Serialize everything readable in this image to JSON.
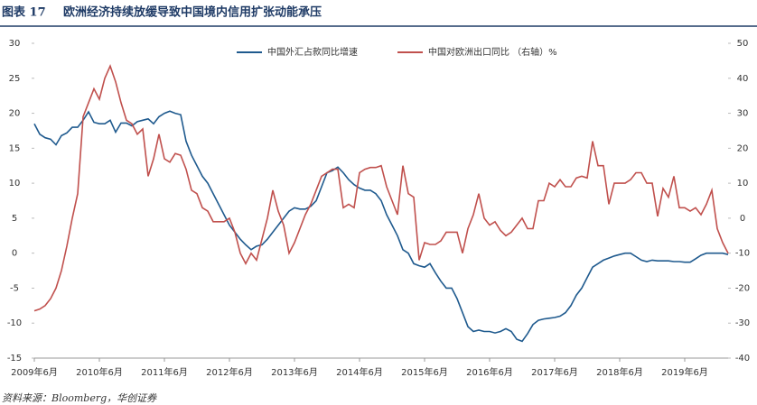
{
  "figure_label": "图表 17",
  "title": "欧洲经济持续放缓导致中国境内信用扩张动能承压",
  "source": "资料来源：Bloomberg，华创证券",
  "chart_data": {
    "type": "line",
    "categories": [
      "2009年6月",
      null,
      null,
      null,
      null,
      null,
      null,
      null,
      null,
      null,
      null,
      null,
      "2010年6月",
      null,
      null,
      null,
      null,
      null,
      null,
      null,
      null,
      null,
      null,
      null,
      "2011年6月",
      null,
      null,
      null,
      null,
      null,
      null,
      null,
      null,
      null,
      null,
      null,
      "2012年6月",
      null,
      null,
      null,
      null,
      null,
      null,
      null,
      null,
      null,
      null,
      null,
      "2013年6月",
      null,
      null,
      null,
      null,
      null,
      null,
      null,
      null,
      null,
      null,
      null,
      "2014年6月",
      null,
      null,
      null,
      null,
      null,
      null,
      null,
      null,
      null,
      null,
      null,
      "2015年6月",
      null,
      null,
      null,
      null,
      null,
      null,
      null,
      null,
      null,
      null,
      null,
      "2016年6月",
      null,
      null,
      null,
      null,
      null,
      null,
      null,
      null,
      null,
      null,
      null,
      "2017年6月",
      null,
      null,
      null,
      null,
      null,
      null,
      null,
      null,
      null,
      null,
      null,
      "2018年6月",
      null,
      null,
      null,
      null,
      null,
      null,
      null,
      null,
      null,
      null,
      null,
      "2019年6月",
      null,
      null,
      null,
      null,
      null,
      null,
      null,
      null
    ],
    "series": [
      {
        "name": "中国外汇占款同比增速",
        "color": "#1f5a8e",
        "values": [
          18.5,
          17,
          16.5,
          16.3,
          15.5,
          16.8,
          17.2,
          18,
          18,
          19,
          20.2,
          18.7,
          18.5,
          18.5,
          19,
          17.3,
          18.6,
          18.6,
          18.2,
          18.8,
          19,
          19.2,
          18.5,
          19.5,
          20,
          20.3,
          20,
          19.8,
          16,
          14,
          12.5,
          11,
          10,
          8.5,
          7,
          5.5,
          4,
          3,
          2,
          1.2,
          0.5,
          1,
          1.2,
          2,
          3,
          4,
          5,
          6,
          6.5,
          6.3,
          6.3,
          6.7,
          7.5,
          9.5,
          11.5,
          11.8,
          12.3,
          11.5,
          10.5,
          9.8,
          9.3,
          9,
          9,
          8.5,
          7.5,
          5.5,
          4,
          2.5,
          0.5,
          0,
          -1.5,
          -1.8,
          -2,
          -1.5,
          -2.8,
          -4,
          -5,
          -5,
          -6.5,
          -8.5,
          -10.5,
          -11.2,
          -11,
          -11.2,
          -11.2,
          -11.4,
          -11.2,
          -10.8,
          -11.2,
          -12.3,
          -12.6,
          -11.5,
          -10.2,
          -9.6,
          -9.4,
          -9.3,
          -9.2,
          -9,
          -8.5,
          -7.5,
          -6,
          -5,
          -3.5,
          -2,
          -1.5,
          -1,
          -0.7,
          -0.4,
          -0.2,
          0,
          0,
          -0.5,
          -1,
          -1.2,
          -1,
          -1.1,
          -1.1,
          -1.1,
          -1.2,
          -1.2,
          -1.3,
          -1.3,
          -0.8,
          -0.3,
          0,
          0,
          0,
          0,
          -0.2
        ]
      },
      {
        "name": "中国对欧洲出口同比 （右轴）%",
        "color": "#c0504d",
        "axis": "y2",
        "values": [
          -26.5,
          -26,
          -25,
          -23,
          -20,
          -15,
          -8,
          0,
          7,
          29,
          33,
          37,
          34,
          40,
          43.5,
          39,
          33,
          28,
          27,
          24,
          25.5,
          12,
          17,
          24,
          17,
          16,
          18.5,
          18,
          14,
          8,
          7,
          3,
          2,
          -1,
          -1,
          -1,
          0,
          -4,
          -10,
          -13,
          -10,
          -12,
          -6,
          0,
          8,
          2,
          -2,
          -10,
          -7,
          -3,
          1,
          4,
          8,
          12,
          13,
          14,
          14,
          3,
          4,
          3,
          13,
          14,
          14.5,
          14.5,
          15,
          9,
          5,
          1,
          15,
          7,
          6,
          -12,
          -7,
          -7.5,
          -7.5,
          -6.5,
          -4,
          -4,
          -4,
          -10,
          -3,
          1,
          7,
          0,
          -2,
          -1,
          -3.5,
          -5,
          -4,
          -2,
          0,
          -3,
          -3,
          5,
          5,
          10,
          9,
          11,
          9,
          9,
          11.5,
          12,
          11.5,
          22,
          15,
          15,
          4,
          10,
          10,
          10,
          11,
          13,
          13,
          10,
          10,
          0.5,
          8.5,
          6,
          12,
          3,
          3,
          2,
          3,
          1,
          4,
          8,
          -3,
          -7,
          -10
        ]
      }
    ],
    "ylim": [
      -15,
      30
    ],
    "yticks": [
      -15,
      -10,
      -5,
      0,
      5,
      10,
      15,
      20,
      25,
      30
    ],
    "y2lim": [
      -40,
      50
    ],
    "y2ticks": [
      -40,
      -30,
      -20,
      -10,
      0,
      10,
      20,
      30,
      40,
      50
    ],
    "legend": "top"
  }
}
